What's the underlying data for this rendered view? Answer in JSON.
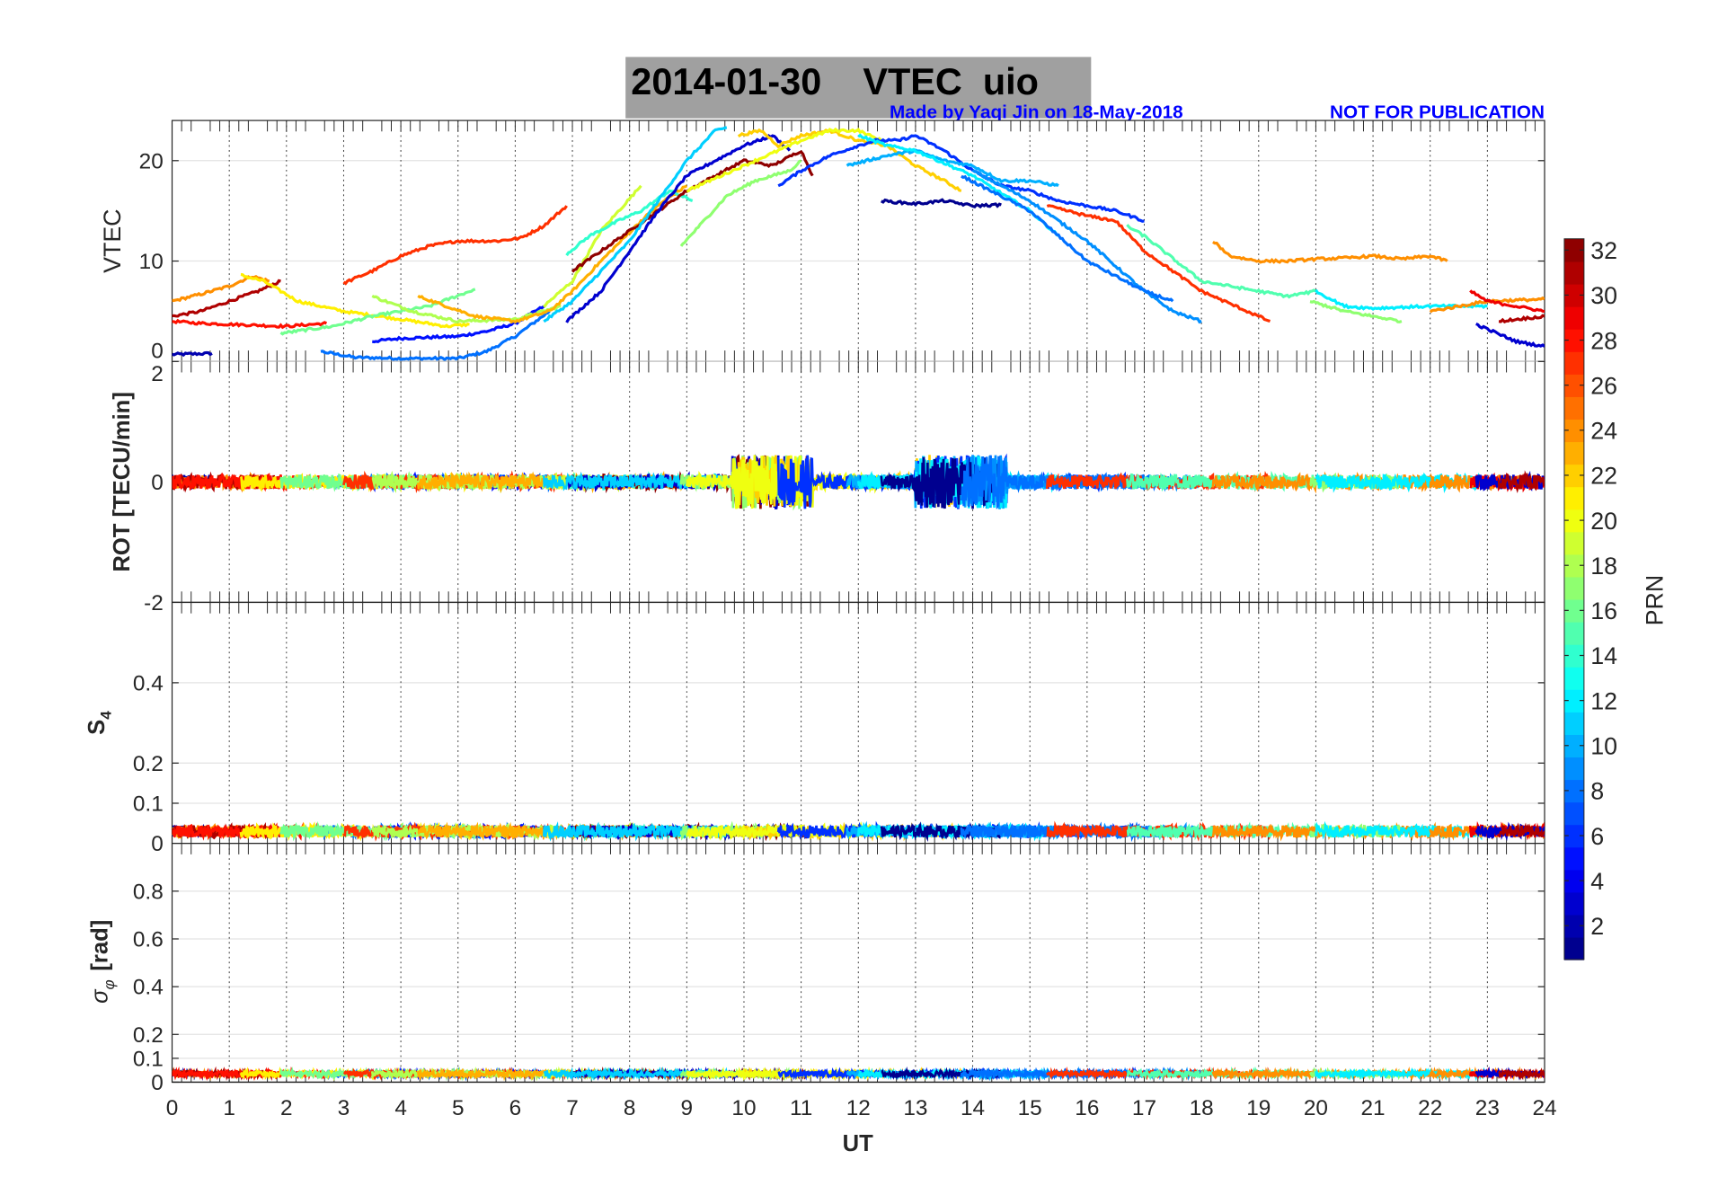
{
  "chart_data": [
    {
      "type": "line",
      "panel": "vtec",
      "title": "2014-01-30    VTEC  uio",
      "watermark_left": "Made by Yaqi Jin on 18-May-2018",
      "watermark_right": "NOT FOR PUBLICATION",
      "ylabel": "VTEC",
      "ylim": [
        0,
        24
      ],
      "yticks": [
        0,
        10,
        20
      ],
      "xlim": [
        0,
        24
      ],
      "grid": true,
      "series": [
        {
          "prn": 2,
          "points": [
            [
              0,
              0.7
            ],
            [
              0.7,
              0.8
            ]
          ]
        },
        {
          "prn": 8,
          "points": [
            [
              2.6,
              1
            ],
            [
              3.2,
              0.4
            ],
            [
              4,
              0.3
            ],
            [
              5,
              0.3
            ],
            [
              5.5,
              1
            ],
            [
              6,
              2.5
            ],
            [
              6.6,
              5
            ]
          ]
        },
        {
          "prn": 5,
          "points": [
            [
              3.5,
              2
            ],
            [
              4,
              2.3
            ],
            [
              5,
              2.5
            ],
            [
              5.5,
              3
            ],
            [
              6,
              3.8
            ],
            [
              6.5,
              5.5
            ]
          ]
        },
        {
          "prn": 24,
          "points": [
            [
              0,
              6
            ],
            [
              0.5,
              6.7
            ],
            [
              1,
              7.5
            ],
            [
              1.4,
              8.5
            ],
            [
              1.7,
              8
            ]
          ]
        },
        {
          "prn": 31,
          "points": [
            [
              0,
              4.5
            ],
            [
              0.5,
              5
            ],
            [
              1,
              6
            ],
            [
              1.5,
              7
            ],
            [
              1.9,
              8
            ]
          ]
        },
        {
          "prn": 28,
          "points": [
            [
              0,
              4
            ],
            [
              0.5,
              3.8
            ],
            [
              1,
              3.7
            ],
            [
              2,
              3.5
            ],
            [
              2.7,
              3.8
            ]
          ]
        },
        {
          "prn": 21,
          "points": [
            [
              1.2,
              8.6
            ],
            [
              1.6,
              8
            ],
            [
              2.2,
              6
            ],
            [
              3,
              5
            ],
            [
              4,
              4.2
            ],
            [
              4.8,
              3.5
            ],
            [
              5.2,
              3.7
            ]
          ]
        },
        {
          "prn": 16,
          "points": [
            [
              1.9,
              2.8
            ],
            [
              2.8,
              3.5
            ],
            [
              3.5,
              4.5
            ],
            [
              4.5,
              5.5
            ],
            [
              5.3,
              7.2
            ]
          ]
        },
        {
          "prn": 27,
          "points": [
            [
              3,
              7.8
            ],
            [
              3.5,
              9
            ],
            [
              4,
              10.5
            ],
            [
              4.5,
              11.5
            ],
            [
              5,
              12
            ],
            [
              5.7,
              12
            ],
            [
              6.1,
              12.3
            ],
            [
              6.5,
              13.5
            ],
            [
              6.9,
              15.5
            ]
          ]
        },
        {
          "prn": 18,
          "points": [
            [
              3.5,
              6.5
            ],
            [
              4.2,
              5
            ],
            [
              5,
              4
            ],
            [
              6,
              4.2
            ],
            [
              6.8,
              5.5
            ]
          ]
        },
        {
          "prn": 23,
          "points": [
            [
              4.3,
              6.5
            ],
            [
              4.8,
              5.5
            ],
            [
              5.3,
              4.5
            ],
            [
              6,
              4
            ],
            [
              6.6,
              5
            ],
            [
              7,
              7
            ],
            [
              7.5,
              10
            ],
            [
              8.2,
              14
            ],
            [
              8.6,
              16
            ],
            [
              9,
              17.5
            ]
          ]
        },
        {
          "prn": 19,
          "points": [
            [
              6.5,
              5.5
            ],
            [
              7,
              8
            ],
            [
              7.5,
              13
            ],
            [
              8.2,
              17.5
            ]
          ]
        },
        {
          "prn": 14,
          "points": [
            [
              6.9,
              10.7
            ],
            [
              7.3,
              12.5
            ],
            [
              7.8,
              14
            ],
            [
              8.2,
              15
            ],
            [
              8.7,
              17
            ],
            [
              9.1,
              16
            ]
          ]
        },
        {
          "prn": 32,
          "points": [
            [
              7,
              9
            ],
            [
              7.5,
              11
            ],
            [
              8,
              13
            ],
            [
              8.5,
              15
            ],
            [
              9,
              17
            ],
            [
              9.5,
              18.5
            ],
            [
              10,
              20
            ],
            [
              10.5,
              19.5
            ],
            [
              11,
              21
            ],
            [
              11.2,
              18.5
            ]
          ]
        },
        {
          "prn": 3,
          "points": [
            [
              6.9,
              4
            ],
            [
              7.5,
              7
            ],
            [
              8,
              11
            ],
            [
              8.5,
              15
            ],
            [
              9,
              18.5
            ],
            [
              9.5,
              20
            ],
            [
              10,
              21.5
            ],
            [
              10.5,
              22.5
            ],
            [
              10.8,
              21
            ]
          ]
        },
        {
          "prn": 11,
          "points": [
            [
              6.5,
              4
            ],
            [
              7,
              6
            ],
            [
              7.5,
              9
            ],
            [
              8,
              12
            ],
            [
              8.5,
              16
            ],
            [
              9,
              20
            ],
            [
              9.5,
              23
            ],
            [
              9.7,
              23.3
            ]
          ]
        },
        {
          "prn": 17,
          "points": [
            [
              8.9,
              11.5
            ],
            [
              9.3,
              14
            ],
            [
              9.7,
              16.5
            ],
            [
              10.2,
              18
            ],
            [
              10.8,
              19
            ],
            [
              11,
              20
            ]
          ]
        },
        {
          "prn": 22,
          "points": [
            [
              9.9,
              22.5
            ],
            [
              10.3,
              23
            ],
            [
              10.6,
              21.5
            ],
            [
              11,
              22.5
            ],
            [
              11.5,
              23
            ],
            [
              12,
              22
            ],
            [
              12.5,
              21.5
            ],
            [
              13,
              19.5
            ],
            [
              13.5,
              18
            ],
            [
              13.8,
              17
            ]
          ]
        },
        {
          "prn": 20,
          "points": [
            [
              9,
              17
            ],
            [
              10,
              19.5
            ],
            [
              11,
              22
            ],
            [
              11.5,
              23
            ],
            [
              12,
              23
            ],
            [
              12.4,
              22
            ]
          ]
        },
        {
          "prn": 6,
          "points": [
            [
              10.6,
              17.5
            ],
            [
              11,
              19
            ],
            [
              11.5,
              20.5
            ],
            [
              12,
              21.5
            ],
            [
              12.3,
              22
            ],
            [
              12.7,
              22
            ],
            [
              13,
              22.5
            ],
            [
              13.5,
              21
            ],
            [
              14,
              19
            ],
            [
              14.5,
              17.5
            ],
            [
              15,
              17
            ],
            [
              15.5,
              16
            ],
            [
              16,
              15.5
            ],
            [
              16.5,
              15
            ],
            [
              17,
              14
            ]
          ]
        },
        {
          "prn": 10,
          "points": [
            [
              11.8,
              19.5
            ],
            [
              12.5,
              20.5
            ],
            [
              13,
              21
            ],
            [
              13.5,
              20
            ],
            [
              14,
              19.5
            ],
            [
              14.5,
              18
            ],
            [
              15,
              18
            ],
            [
              15.5,
              17.5
            ]
          ]
        },
        {
          "prn": 12,
          "points": [
            [
              12,
              22.5
            ],
            [
              12.5,
              21.5
            ],
            [
              13,
              21
            ],
            [
              14,
              18.5
            ],
            [
              15,
              15
            ],
            [
              15.5,
              12.5
            ]
          ]
        },
        {
          "prn": 1,
          "points": [
            [
              12.4,
              16
            ],
            [
              13,
              15.7
            ],
            [
              13.5,
              16
            ],
            [
              14,
              15.5
            ],
            [
              14.5,
              15.6
            ]
          ]
        },
        {
          "prn": 9,
          "points": [
            [
              14,
              19
            ],
            [
              15,
              16
            ],
            [
              16,
              12
            ],
            [
              17,
              7
            ],
            [
              17.5,
              5
            ],
            [
              18,
              4
            ]
          ]
        },
        {
          "prn": 8,
          "points": [
            [
              13.8,
              18.5
            ],
            [
              15,
              15
            ],
            [
              16,
              10
            ],
            [
              17,
              7
            ],
            [
              17.5,
              6
            ]
          ]
        },
        {
          "prn": 27,
          "points": [
            [
              15.3,
              15.5
            ],
            [
              16,
              14.5
            ],
            [
              16.5,
              14
            ],
            [
              17,
              11
            ],
            [
              18,
              7
            ],
            [
              19,
              4.5
            ],
            [
              19.2,
              4
            ]
          ]
        },
        {
          "prn": 15,
          "points": [
            [
              16.7,
              13.5
            ],
            [
              17,
              12.5
            ],
            [
              18,
              8
            ],
            [
              19,
              7
            ],
            [
              19.5,
              6.5
            ],
            [
              20,
              7
            ]
          ]
        },
        {
          "prn": 24,
          "points": [
            [
              18.2,
              12
            ],
            [
              18.5,
              10.5
            ],
            [
              19,
              10
            ],
            [
              19.5,
              10
            ],
            [
              20,
              10.2
            ],
            [
              20.5,
              10.3
            ],
            [
              21,
              10.5
            ],
            [
              21.5,
              10.2
            ],
            [
              22,
              10.5
            ],
            [
              22.3,
              10
            ]
          ]
        },
        {
          "prn": 17,
          "points": [
            [
              19.9,
              6
            ],
            [
              20.5,
              5
            ],
            [
              21,
              4.5
            ],
            [
              21.5,
              4
            ]
          ]
        },
        {
          "prn": 12,
          "points": [
            [
              20,
              7
            ],
            [
              20.5,
              5.5
            ],
            [
              21,
              5.3
            ],
            [
              22,
              5.5
            ],
            [
              23,
              5.5
            ]
          ]
        },
        {
          "prn": 24,
          "points": [
            [
              22,
              5
            ],
            [
              22.5,
              5.5
            ],
            [
              23,
              6
            ],
            [
              24,
              6.2
            ]
          ]
        },
        {
          "prn": 29,
          "points": [
            [
              22.7,
              7
            ],
            [
              23,
              6
            ],
            [
              23.5,
              5.5
            ],
            [
              24,
              5
            ]
          ]
        },
        {
          "prn": 3,
          "points": [
            [
              22.8,
              3.7
            ],
            [
              23.5,
              2
            ],
            [
              24,
              1.5
            ]
          ]
        },
        {
          "prn": 31,
          "points": [
            [
              23.2,
              4
            ],
            [
              24,
              4.5
            ]
          ]
        }
      ]
    },
    {
      "type": "line",
      "panel": "rot",
      "ylabel": "ROT [TECU/min]",
      "ylim": [
        -2,
        2
      ],
      "yticks": [
        -2,
        0,
        2
      ],
      "baseline": 0,
      "noise_amplitude": 0.12,
      "disturbed_intervals_ut": [
        [
          9.8,
          11.2
        ],
        [
          13,
          14.6
        ]
      ],
      "disturbed_amplitude": 0.45
    },
    {
      "type": "line",
      "panel": "s4",
      "ylabel": "S",
      "ylabel_sub": "4",
      "ylim": [
        0,
        0.6
      ],
      "yticks": [
        0,
        0.1,
        0.2,
        0.4
      ],
      "baseline": 0.03,
      "noise_amplitude": 0.015
    },
    {
      "type": "line",
      "panel": "sigma_phi",
      "ylabel": "σ",
      "ylabel_sub": "φ",
      "ylabel_unit": "[rad]",
      "ylim": [
        0,
        1
      ],
      "yticks": [
        0,
        0.1,
        0.2,
        0.4,
        0.6,
        0.8
      ],
      "baseline": 0.035,
      "noise_amplitude": 0.012,
      "peak": {
        "prn": 2,
        "ut": [
          9,
          10.2
        ],
        "max": 0.13
      }
    }
  ],
  "xaxis": {
    "label": "UT",
    "ticks": [
      0,
      1,
      2,
      3,
      4,
      5,
      6,
      7,
      8,
      9,
      10,
      11,
      12,
      13,
      14,
      15,
      16,
      17,
      18,
      19,
      20,
      21,
      22,
      23,
      24
    ]
  },
  "colorbar": {
    "label": "PRN",
    "range": [
      1,
      32
    ],
    "ticks": [
      2,
      4,
      6,
      8,
      10,
      12,
      14,
      16,
      18,
      20,
      22,
      24,
      26,
      28,
      30,
      32
    ],
    "colormap": "jet"
  }
}
